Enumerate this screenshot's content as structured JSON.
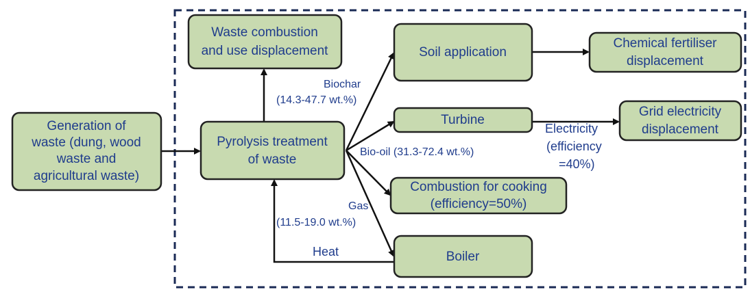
{
  "nodes": [
    {
      "lines": [
        "Generation of",
        "waste (dung, wood",
        "waste and",
        "agricultural waste)"
      ]
    },
    {
      "lines": [
        "Pyrolysis treatment",
        "of waste"
      ]
    },
    {
      "lines": [
        "Waste combustion",
        "and use displacement"
      ]
    },
    {
      "lines": [
        "Soil application"
      ]
    },
    {
      "lines": [
        "Chemical fertiliser",
        "displacement"
      ]
    },
    {
      "lines": [
        "Turbine"
      ]
    },
    {
      "lines": [
        "Grid electricity",
        "displacement"
      ]
    },
    {
      "lines": [
        "Combustion for cooking",
        "(efficiency=50%)"
      ]
    },
    {
      "lines": [
        "Boiler"
      ]
    }
  ],
  "edge_labels": [
    {
      "lines": [
        "Biochar",
        "(14.3-47.7 wt.%)"
      ]
    },
    {
      "lines": [
        "Bio-oil (31.3-72.4 wt.%)"
      ]
    },
    {
      "lines": [
        "Gas",
        "(11.5-19.0 wt.%)"
      ]
    },
    {
      "lines": [
        "Heat"
      ]
    },
    {
      "lines": [
        "Electricity",
        "(efficiency",
        "=40%)"
      ]
    }
  ]
}
